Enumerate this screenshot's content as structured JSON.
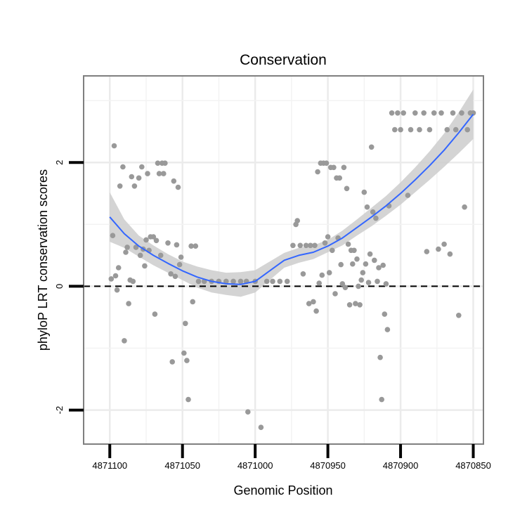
{
  "chart_data": {
    "type": "scatter",
    "title": "Conservation",
    "xlabel": "Genomic Position",
    "ylabel": "phyloP LRT conservation scores",
    "x_reversed": true,
    "xlim": [
      4871118,
      4870843
    ],
    "ylim": [
      -2.55,
      3.4
    ],
    "x_ticks": [
      4871100,
      4871050,
      4871000,
      4870950,
      4870900,
      4870850
    ],
    "x_tick_labels": [
      "4871100",
      "4871050",
      "4871000",
      "4870950",
      "4870900",
      "4870850"
    ],
    "y_ticks": [
      -2,
      0,
      2
    ],
    "y_tick_labels": [
      "-2",
      "0",
      "2"
    ],
    "x_minor_gridlines": [
      4871075,
      4871025,
      4870975,
      4870925,
      4870875
    ],
    "y_minor_gridlines": [
      -1,
      1,
      3
    ],
    "reference_line": {
      "y": 0,
      "style": "dashed"
    },
    "point_color": "#999999",
    "smooth_color": "#3366ff",
    "ribbon_color": "#cccccc",
    "points": [
      [
        4871097,
        2.27
      ],
      [
        4871098,
        0.82
      ],
      [
        4871099,
        0.12
      ],
      [
        4871096,
        0.17
      ],
      [
        4871095,
        -0.06
      ],
      [
        4871094,
        0.3
      ],
      [
        4871093,
        1.62
      ],
      [
        4871091,
        1.93
      ],
      [
        4871090,
        -0.88
      ],
      [
        4871089,
        0.55
      ],
      [
        4871088,
        0.63
      ],
      [
        4871087,
        -0.28
      ],
      [
        4871086,
        0.1
      ],
      [
        4871085,
        1.77
      ],
      [
        4871084,
        0.08
      ],
      [
        4871083,
        1.62
      ],
      [
        4871082,
        0.63
      ],
      [
        4871080,
        1.75
      ],
      [
        4871079,
        0.5
      ],
      [
        4871078,
        1.93
      ],
      [
        4871077,
        0.6
      ],
      [
        4871076,
        0.33
      ],
      [
        4871075,
        0.75
      ],
      [
        4871074,
        1.82
      ],
      [
        4871073,
        0.58
      ],
      [
        4871072,
        0.8
      ],
      [
        4871070,
        0.8
      ],
      [
        4871069,
        -0.45
      ],
      [
        4871068,
        0.74
      ],
      [
        4871067,
        1.99
      ],
      [
        4871066,
        1.82
      ],
      [
        4871065,
        0.5
      ],
      [
        4871064,
        1.99
      ],
      [
        4871063,
        1.82
      ],
      [
        4871062,
        1.99
      ],
      [
        4871060,
        0.7
      ],
      [
        4871058,
        0.2
      ],
      [
        4871057,
        -1.22
      ],
      [
        4871056,
        1.7
      ],
      [
        4871055,
        0.16
      ],
      [
        4871054,
        0.67
      ],
      [
        4871053,
        1.6
      ],
      [
        4871052,
        0.35
      ],
      [
        4871051,
        0.47
      ],
      [
        4871049,
        -1.08
      ],
      [
        4871048,
        -0.6
      ],
      [
        4871047,
        -1.2
      ],
      [
        4871046,
        -1.83
      ],
      [
        4871044,
        0.65
      ],
      [
        4871043,
        -0.25
      ],
      [
        4871041,
        0.65
      ],
      [
        4871039,
        0.08
      ],
      [
        4871035,
        0.08
      ],
      [
        4871030,
        0.08
      ],
      [
        4871025,
        0.08
      ],
      [
        4871020,
        0.08
      ],
      [
        4871015,
        0.08
      ],
      [
        4871010,
        0.08
      ],
      [
        4871006,
        0.08
      ],
      [
        4871005,
        -2.03
      ],
      [
        4871000,
        0.08
      ],
      [
        4870996,
        -2.28
      ],
      [
        4870992,
        0.08
      ],
      [
        4870988,
        0.08
      ],
      [
        4870983,
        0.08
      ],
      [
        4870978,
        0.08
      ],
      [
        4870974,
        0.66
      ],
      [
        4870972,
        1.0
      ],
      [
        4870971,
        1.06
      ],
      [
        4870969,
        0.66
      ],
      [
        4870967,
        0.2
      ],
      [
        4870965,
        0.66
      ],
      [
        4870963,
        -0.28
      ],
      [
        4870962,
        0.66
      ],
      [
        4870960,
        -0.25
      ],
      [
        4870959,
        0.66
      ],
      [
        4870958,
        -0.4
      ],
      [
        4870957,
        1.85
      ],
      [
        4870956,
        0.05
      ],
      [
        4870955,
        1.99
      ],
      [
        4870954,
        0.18
      ],
      [
        4870953,
        1.99
      ],
      [
        4870952,
        0.7
      ],
      [
        4870951,
        1.99
      ],
      [
        4870950,
        0.8
      ],
      [
        4870949,
        0.22
      ],
      [
        4870948,
        1.92
      ],
      [
        4870947,
        0.58
      ],
      [
        4870946,
        1.92
      ],
      [
        4870945,
        -0.12
      ],
      [
        4870944,
        1.75
      ],
      [
        4870943,
        0.78
      ],
      [
        4870942,
        1.75
      ],
      [
        4870941,
        0.35
      ],
      [
        4870940,
        0.04
      ],
      [
        4870939,
        1.92
      ],
      [
        4870938,
        -0.02
      ],
      [
        4870937,
        1.58
      ],
      [
        4870936,
        0.68
      ],
      [
        4870935,
        -0.3
      ],
      [
        4870934,
        0.58
      ],
      [
        4870933,
        0.36
      ],
      [
        4870932,
        0.58
      ],
      [
        4870931,
        -0.28
      ],
      [
        4870930,
        0.44
      ],
      [
        4870929,
        0.0
      ],
      [
        4870928,
        -0.3
      ],
      [
        4870927,
        0.1
      ],
      [
        4870926,
        0.22
      ],
      [
        4870925,
        1.52
      ],
      [
        4870924,
        0.36
      ],
      [
        4870923,
        1.28
      ],
      [
        4870922,
        0.06
      ],
      [
        4870921,
        0.52
      ],
      [
        4870920,
        2.25
      ],
      [
        4870919,
        1.2
      ],
      [
        4870918,
        0.42
      ],
      [
        4870917,
        1.1
      ],
      [
        4870916,
        0.08
      ],
      [
        4870915,
        0.3
      ],
      [
        4870914,
        -1.15
      ],
      [
        4870913,
        -1.83
      ],
      [
        4870912,
        0.34
      ],
      [
        4870911,
        -0.45
      ],
      [
        4870910,
        0.04
      ],
      [
        4870909,
        -0.7
      ],
      [
        4870908,
        1.3
      ],
      [
        4870906,
        2.8
      ],
      [
        4870904,
        2.53
      ],
      [
        4870902,
        2.8
      ],
      [
        4870900,
        2.53
      ],
      [
        4870898,
        2.8
      ],
      [
        4870895,
        1.47
      ],
      [
        4870893,
        2.53
      ],
      [
        4870890,
        2.8
      ],
      [
        4870887,
        2.53
      ],
      [
        4870884,
        2.8
      ],
      [
        4870882,
        0.56
      ],
      [
        4870880,
        2.53
      ],
      [
        4870877,
        2.8
      ],
      [
        4870874,
        0.6
      ],
      [
        4870872,
        2.8
      ],
      [
        4870870,
        0.68
      ],
      [
        4870868,
        2.53
      ],
      [
        4870866,
        0.52
      ],
      [
        4870864,
        2.8
      ],
      [
        4870862,
        2.53
      ],
      [
        4870860,
        -0.47
      ],
      [
        4870858,
        2.8
      ],
      [
        4870856,
        1.28
      ],
      [
        4870854,
        2.53
      ],
      [
        4870852,
        2.8
      ],
      [
        4870850,
        2.8
      ]
    ],
    "smooth": {
      "x": [
        4871100,
        4871090,
        4871080,
        4871070,
        4871060,
        4871050,
        4871040,
        4871030,
        4871020,
        4871010,
        4871000,
        4870990,
        4870980,
        4870970,
        4870960,
        4870950,
        4870940,
        4870930,
        4870920,
        4870910,
        4870900,
        4870890,
        4870880,
        4870870,
        4870860,
        4870850
      ],
      "y": [
        1.12,
        0.85,
        0.65,
        0.5,
        0.37,
        0.25,
        0.15,
        0.08,
        0.04,
        0.03,
        0.08,
        0.25,
        0.42,
        0.5,
        0.55,
        0.65,
        0.78,
        0.95,
        1.12,
        1.3,
        1.5,
        1.72,
        1.95,
        2.2,
        2.48,
        2.78
      ],
      "lower": [
        0.72,
        0.62,
        0.48,
        0.34,
        0.22,
        0.1,
        -0.02,
        -0.1,
        -0.14,
        -0.17,
        -0.1,
        0.1,
        0.3,
        0.38,
        0.44,
        0.55,
        0.66,
        0.82,
        0.97,
        1.14,
        1.32,
        1.52,
        1.72,
        1.93,
        2.15,
        2.38
      ],
      "upper": [
        1.52,
        1.08,
        0.82,
        0.66,
        0.52,
        0.4,
        0.32,
        0.26,
        0.22,
        0.23,
        0.26,
        0.4,
        0.54,
        0.62,
        0.66,
        0.75,
        0.9,
        1.08,
        1.27,
        1.46,
        1.68,
        1.92,
        2.18,
        2.47,
        2.81,
        3.18
      ]
    }
  }
}
